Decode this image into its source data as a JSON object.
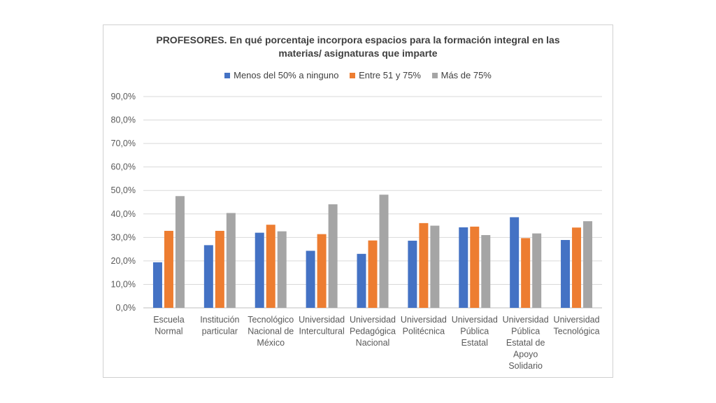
{
  "chart_data": {
    "type": "bar",
    "title_lines": [
      "PROFESORES. En qué porcentaje incorpora espacios para la formación integral en las",
      "materias/ asignaturas que imparte"
    ],
    "categories": [
      [
        "Escuela",
        "Normal"
      ],
      [
        "Institución",
        "particular"
      ],
      [
        "Tecnológico",
        "Nacional de",
        "México"
      ],
      [
        "Universidad",
        "Intercultural"
      ],
      [
        "Universidad",
        "Pedagógica",
        "Nacional"
      ],
      [
        "Universidad",
        "Politécnica"
      ],
      [
        "Universidad",
        "Pública",
        "Estatal"
      ],
      [
        "Universidad",
        "Pública",
        "Estatal de",
        "Apoyo",
        "Solidario"
      ],
      [
        "Universidad",
        "Tecnológica"
      ]
    ],
    "series": [
      {
        "name": "Menos del 50% a ninguno",
        "color": "#4472c4",
        "values": [
          19.4,
          26.7,
          32.0,
          24.3,
          23.0,
          28.6,
          34.3,
          38.6,
          28.9
        ]
      },
      {
        "name": "Entre 51 y 75%",
        "color": "#ed7d31",
        "values": [
          32.8,
          32.8,
          35.4,
          31.4,
          28.7,
          36.1,
          34.6,
          29.7,
          34.2
        ]
      },
      {
        "name": "Más de 75%",
        "color": "#a5a5a5",
        "values": [
          47.6,
          40.4,
          32.6,
          44.1,
          48.2,
          35.0,
          31.0,
          31.7,
          36.9
        ]
      }
    ],
    "ylim": [
      0,
      90
    ],
    "yticks": [
      "0,0%",
      "10,0%",
      "20,0%",
      "30,0%",
      "40,0%",
      "50,0%",
      "60,0%",
      "70,0%",
      "80,0%",
      "90,0%"
    ],
    "grid": true,
    "legend_position": "top"
  }
}
